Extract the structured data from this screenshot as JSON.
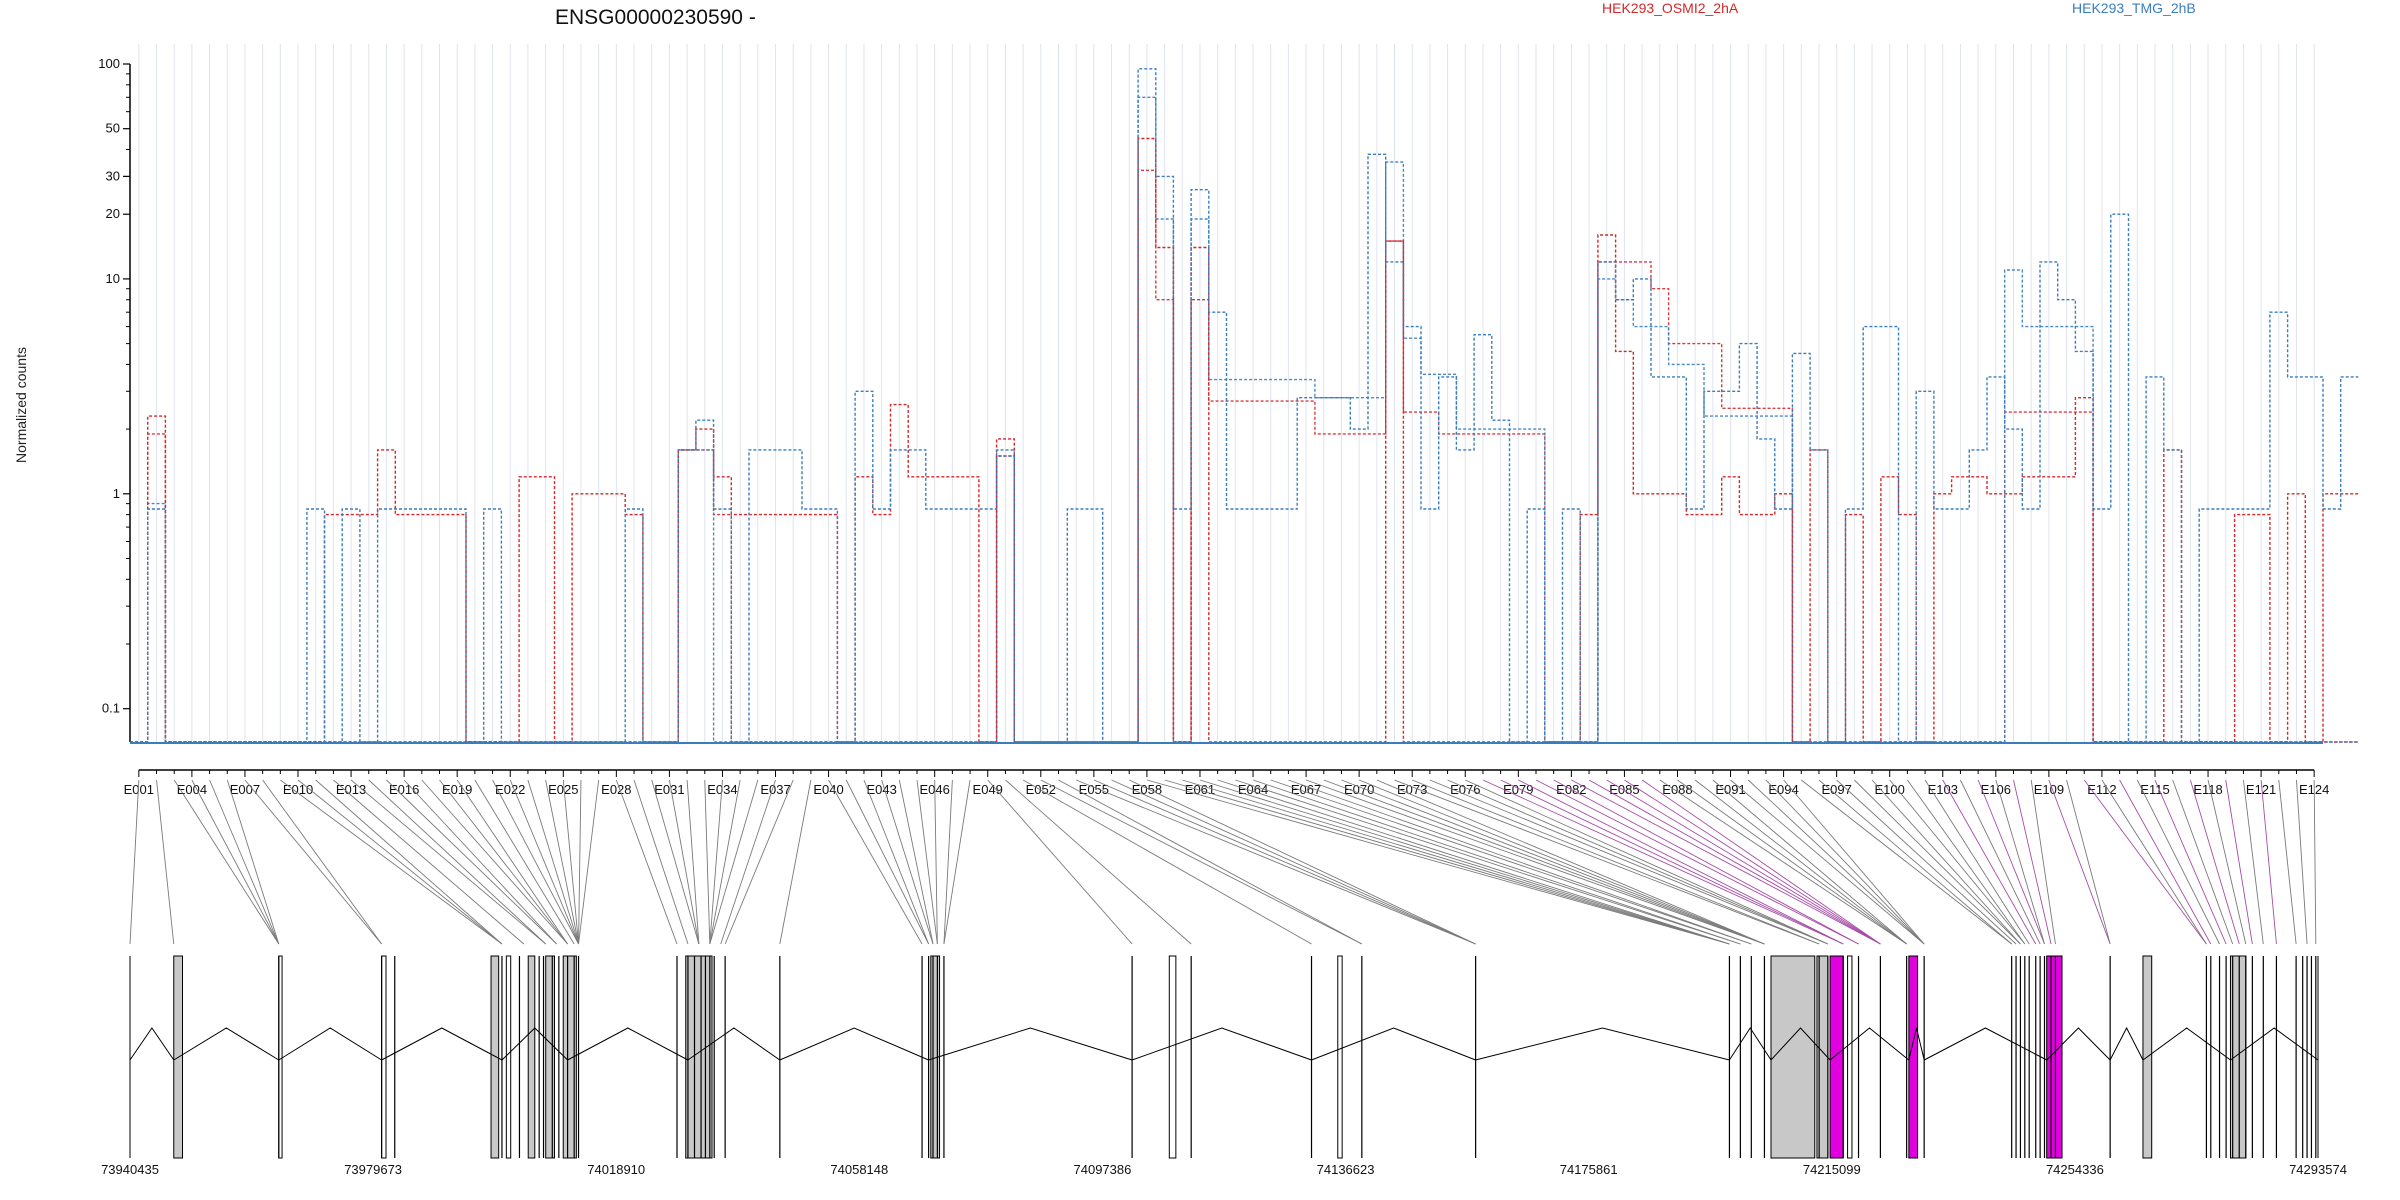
{
  "title": "ENSG00000230590 -",
  "legend": [
    {
      "label": "HEK293_OSMI2_2hA",
      "color": "#d62728"
    },
    {
      "label": "HEK293_TMG_2hB",
      "color": "#3a7dbf"
    }
  ],
  "chart_data": {
    "type": "line",
    "ylabel": "Normalized counts",
    "yscale": "log",
    "y_ticks": [
      0.1,
      1,
      10,
      20,
      30,
      50,
      100
    ],
    "y_tick_labels": [
      "0.1",
      "1",
      "10",
      "20",
      "30",
      "50",
      "100"
    ],
    "ylim": [
      0.07,
      100
    ],
    "exon_count": 124,
    "x_tick_labels": [
      "E001",
      "E004",
      "E007",
      "E010",
      "E013",
      "E016",
      "E019",
      "E022",
      "E025",
      "E028",
      "E031",
      "E034",
      "E037",
      "E040",
      "E043",
      "E046",
      "E049",
      "E052",
      "E055",
      "E058",
      "E061",
      "E064",
      "E067",
      "E070",
      "E073",
      "E076",
      "E079",
      "E082",
      "E085",
      "E088",
      "E091",
      "E094",
      "E097",
      "E100",
      "E103",
      "E106",
      "E109",
      "E112",
      "E115",
      "E118",
      "E121",
      "E124"
    ],
    "genomic_tick_labels": [
      "73940435",
      "73979673",
      "74018910",
      "74058148",
      "74097386",
      "74136623",
      "74175861",
      "74215099",
      "74254336",
      "74293574"
    ],
    "series": [
      {
        "name": "HEK293_OSMI2_2hA",
        "color": "#d62728",
        "values": [
          0.07,
          2.3,
          0.07,
          0.07,
          0.07,
          0.07,
          0.07,
          0.07,
          0.07,
          0.07,
          0.07,
          0.8,
          0.8,
          0.8,
          1.6,
          0.8,
          0.8,
          0.8,
          0.8,
          0.07,
          0.07,
          0.07,
          1.2,
          1.2,
          0.07,
          1.0,
          1.0,
          1.0,
          0.8,
          0.07,
          0.07,
          1.6,
          2.0,
          1.2,
          0.8,
          0.8,
          0.8,
          0.8,
          0.8,
          0.8,
          0.07,
          1.2,
          0.8,
          2.6,
          1.2,
          1.2,
          1.2,
          1.2,
          0.07,
          1.8,
          0.07,
          0.07,
          0.07,
          0.07,
          0.07,
          0.07,
          0.07,
          45,
          14,
          0.07,
          14,
          0.07,
          0.07,
          0.07,
          0.07,
          0.07,
          0.07,
          0.07,
          0.07,
          0.07,
          0.07,
          15,
          0.07,
          0.07,
          0.07,
          0.07,
          0.07,
          0.07,
          0.07,
          0.07,
          0.07,
          0.07,
          0.8,
          16,
          4.6,
          1.0,
          1.0,
          1.0,
          0.8,
          0.8,
          1.2,
          0.8,
          0.8,
          1.0,
          0.07,
          1.6,
          0.07,
          0.8,
          0.07,
          1.2,
          0.8,
          0.07,
          1.0,
          1.2,
          1.2,
          1.0,
          1.0,
          1.2,
          1.2,
          1.2,
          2.8,
          0.07,
          0.07,
          0.07,
          0.07,
          1.6,
          0.07,
          0.07,
          0.07,
          0.8,
          0.8,
          0.07,
          1.0,
          0.07,
          1.0,
          1.0
        ]
      },
      {
        "name": "HEK293_TMG_2hB",
        "color": "#3a7dbf",
        "values": [
          0.07,
          0.85,
          0.07,
          0.07,
          0.07,
          0.07,
          0.07,
          0.07,
          0.07,
          0.07,
          0.85,
          0.07,
          0.85,
          0.07,
          0.85,
          0.85,
          0.85,
          0.85,
          0.85,
          0.07,
          0.85,
          0.07,
          0.07,
          0.07,
          0.07,
          0.07,
          0.07,
          0.07,
          0.85,
          0.07,
          0.07,
          1.6,
          2.2,
          0.85,
          0.07,
          1.6,
          1.6,
          1.6,
          0.85,
          0.85,
          0.07,
          3.0,
          0.85,
          1.6,
          1.6,
          0.85,
          0.85,
          0.85,
          0.85,
          1.6,
          0.07,
          0.07,
          0.07,
          0.85,
          0.85,
          0.07,
          0.07,
          95,
          30,
          0.85,
          26,
          7,
          0.85,
          0.85,
          0.85,
          0.85,
          2.8,
          2.8,
          2.8,
          2.0,
          38,
          12,
          6,
          0.85,
          3.5,
          1.6,
          5.5,
          2.2,
          0.07,
          0.85,
          0.07,
          0.85,
          0.07,
          12,
          8,
          10,
          3.5,
          3.5,
          0.85,
          3.0,
          3.0,
          5,
          1.8,
          0.85,
          4.5,
          1.6,
          0.07,
          0.85,
          6,
          6,
          0.07,
          3.0,
          0.85,
          0.85,
          1.6,
          3.5,
          2.0,
          0.85,
          12,
          8,
          4.6,
          0.85,
          20,
          0.07,
          3.5,
          1.6,
          0.07,
          0.85,
          0.85,
          0.85,
          0.85,
          7,
          3.5,
          3.5,
          0.85,
          3.5
        ]
      }
    ],
    "series_extra": [
      {
        "name": "",
        "color": "#d62728",
        "values": [
          0.07,
          1.9,
          0.07,
          0.07,
          0.07,
          0.07,
          0.07,
          0.07,
          0.07,
          0.07,
          0.07,
          0.07,
          0.07,
          0.07,
          0.07,
          0.07,
          0.07,
          0.07,
          0.07,
          0.07,
          0.07,
          0.07,
          0.07,
          0.07,
          0.07,
          0.07,
          0.07,
          0.07,
          0.07,
          0.07,
          0.07,
          1.6,
          1.6,
          0.8,
          0.07,
          0.07,
          0.07,
          0.07,
          0.07,
          0.07,
          0.07,
          0.07,
          0.07,
          0.07,
          0.07,
          0.07,
          0.07,
          0.07,
          0.07,
          1.5,
          0.07,
          0.07,
          0.07,
          0.07,
          0.07,
          0.07,
          0.07,
          32,
          8,
          0.07,
          8,
          2.7,
          2.7,
          2.7,
          2.7,
          2.7,
          2.7,
          1.9,
          1.9,
          1.9,
          1.9,
          15,
          2.4,
          2.4,
          1.9,
          1.9,
          1.9,
          1.9,
          1.9,
          1.9,
          0.07,
          0.07,
          0.07,
          12,
          12,
          12,
          9,
          5,
          5,
          5,
          2.5,
          2.5,
          2.5,
          2.5,
          0.07,
          0.07,
          0.07,
          0.07,
          0.07,
          0.07,
          0.07,
          0.07,
          0.07,
          0.07,
          0.07,
          0.07,
          2.4,
          2.4,
          2.4,
          2.4,
          2.4,
          0.07,
          0.07,
          0.07,
          0.07,
          0.07,
          0.07,
          0.07,
          0.07,
          0.07,
          0.07,
          0.07,
          0.07,
          0.07,
          0.07,
          0.07
        ]
      },
      {
        "name": "",
        "color": "#3a7dbf",
        "values": [
          0.07,
          0.9,
          0.07,
          0.07,
          0.07,
          0.07,
          0.07,
          0.07,
          0.07,
          0.07,
          0.07,
          0.07,
          0.07,
          0.07,
          0.07,
          0.07,
          0.07,
          0.07,
          0.07,
          0.07,
          0.07,
          0.07,
          0.07,
          0.07,
          0.07,
          0.07,
          0.07,
          0.07,
          0.07,
          0.07,
          0.07,
          1.6,
          1.6,
          0.07,
          0.07,
          0.07,
          0.07,
          0.07,
          0.07,
          0.07,
          0.07,
          0.07,
          0.07,
          0.07,
          0.07,
          0.07,
          0.07,
          0.07,
          0.07,
          1.5,
          0.07,
          0.07,
          0.07,
          0.07,
          0.07,
          0.07,
          0.07,
          70,
          19,
          0.07,
          19,
          3.4,
          3.4,
          3.4,
          3.4,
          3.4,
          3.4,
          2.8,
          2.8,
          2.8,
          2.8,
          35,
          5.3,
          3.6,
          3.6,
          2.0,
          2.0,
          2.0,
          2.0,
          2.0,
          0.07,
          0.07,
          0.07,
          10,
          8,
          6,
          6,
          4,
          4,
          2.3,
          2.3,
          2.3,
          2.3,
          2.3,
          0.07,
          0.07,
          0.07,
          0.07,
          0.07,
          0.07,
          0.07,
          0.07,
          0.07,
          0.07,
          0.07,
          0.07,
          11,
          6,
          6,
          6,
          6,
          0.07,
          0.07,
          0.07,
          0.07,
          0.07,
          0.07,
          0.07,
          0.07,
          0.07,
          0.07,
          0.07,
          0.07,
          0.07,
          0.07,
          0.07
        ]
      }
    ]
  },
  "genome": {
    "exon_blocks": [
      {
        "pos": 0.02,
        "w": 0.004,
        "fill": "#c8c8c8"
      },
      {
        "pos": 0.068,
        "w": 0.0015,
        "fill": "#ffffff"
      },
      {
        "pos": 0.115,
        "w": 0.002,
        "fill": "#ffffff"
      },
      {
        "pos": 0.165,
        "w": 0.0035,
        "fill": "#c8c8c8"
      },
      {
        "pos": 0.172,
        "w": 0.002,
        "fill": "#ffffff"
      },
      {
        "pos": 0.182,
        "w": 0.003,
        "fill": "#c8c8c8"
      },
      {
        "pos": 0.19,
        "w": 0.004,
        "fill": "#c8c8c8"
      },
      {
        "pos": 0.198,
        "w": 0.006,
        "fill": "#c8c8c8"
      },
      {
        "pos": 0.254,
        "w": 0.012,
        "fill": "#c8c8c8"
      },
      {
        "pos": 0.366,
        "w": 0.004,
        "fill": "#c8c8c8"
      },
      {
        "pos": 0.475,
        "w": 0.003,
        "fill": "#ffffff"
      },
      {
        "pos": 0.552,
        "w": 0.002,
        "fill": "#ffffff"
      },
      {
        "pos": 0.75,
        "w": 0.02,
        "fill": "#c8c8c8"
      },
      {
        "pos": 0.771,
        "w": 0.005,
        "fill": "#c8c8c8"
      },
      {
        "pos": 0.777,
        "w": 0.006,
        "fill": "#e000e0"
      },
      {
        "pos": 0.785,
        "w": 0.002,
        "fill": "#ffffff"
      },
      {
        "pos": 0.813,
        "w": 0.004,
        "fill": "#e000e0"
      },
      {
        "pos": 0.876,
        "w": 0.007,
        "fill": "#e000e0"
      },
      {
        "pos": 0.92,
        "w": 0.004,
        "fill": "#c8c8c8"
      },
      {
        "pos": 0.96,
        "w": 0.007,
        "fill": "#c8c8c8"
      }
    ],
    "exon_lines": [
      0.068,
      0.115,
      0.121,
      0.17,
      0.178,
      0.187,
      0.189,
      0.193,
      0.196,
      0.2,
      0.203,
      0.205,
      0.25,
      0.255,
      0.258,
      0.261,
      0.263,
      0.265,
      0.267,
      0.272,
      0.297,
      0.362,
      0.365,
      0.367,
      0.369,
      0.372,
      0.458,
      0.485,
      0.54,
      0.563,
      0.615,
      0.731,
      0.736,
      0.741,
      0.747,
      0.772,
      0.776,
      0.783,
      0.79,
      0.8,
      0.812,
      0.82,
      0.86,
      0.862,
      0.864,
      0.866,
      0.868,
      0.871,
      0.873,
      0.875,
      0.878,
      0.88,
      0.905,
      0.949,
      0.951,
      0.955,
      0.958,
      0.961,
      0.964,
      0.967,
      0.97,
      0.975,
      0.981,
      0.99,
      0.993,
      0.995,
      0.997,
      0.999
    ]
  }
}
